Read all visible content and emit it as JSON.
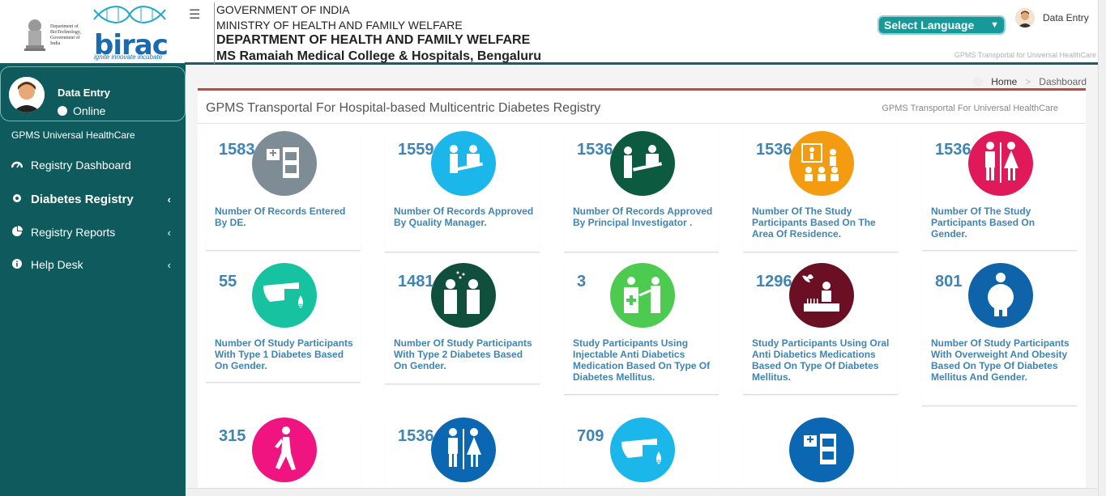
{
  "header": {
    "gov_line1": "GOVERNMENT OF INDIA",
    "gov_line2": "MINISTRY OF HEALTH AND FAMILY WELFARE",
    "gov_line3": "DEPARTMENT OF HEALTH AND FAMILY WELFARE",
    "gov_line4": "MS Ramaiah Medical College & Hospitals, Bengaluru",
    "language_select": "Select Language",
    "user_name": "Data Entry",
    "subtitle": "GPMS Transportal for Universal HealthCare",
    "logo_text": "birac",
    "logo_tagline": "ignite innovate incubate",
    "emblem_text": "Department of BioTechnology, Government of India"
  },
  "sidebar": {
    "user_name": "Data Entry",
    "status": "Online",
    "org": "GPMS Universal HealthCare",
    "items": [
      {
        "label": "Registry Dashboard",
        "icon": "dashboard-icon"
      },
      {
        "label": "Diabetes Registry",
        "icon": "gear-icon"
      },
      {
        "label": "Registry Reports",
        "icon": "pie-chart-icon"
      },
      {
        "label": "Help Desk",
        "icon": "info-icon"
      }
    ]
  },
  "breadcrumb": {
    "home": "Home",
    "current": "Dashboard"
  },
  "panel": {
    "title": "GPMS Transportal For Hospital-based Multicentric Diabetes Registry",
    "subtitle": "GPMS Transportal For Universal HealthCare"
  },
  "cards": [
    {
      "count": "1583",
      "label": "Number Of Records Entered By DE.",
      "color": "#7d8c95",
      "icon": "records-icon"
    },
    {
      "count": "1559",
      "label": "Number Of Records Approved By Quality Manager.",
      "color": "#1bb6ea",
      "icon": "quality-manager-icon"
    },
    {
      "count": "1536",
      "label": "Number Of Records Approved By Principal Investigator .",
      "color": "#0c5a40",
      "icon": "investigator-icon"
    },
    {
      "count": "1536",
      "label": "Number Of The Study Participants Based On The Area Of Residence.",
      "color": "#f39c12",
      "icon": "residence-icon"
    },
    {
      "count": "1536",
      "label": "Number Of The Study Participants Based On Gender.",
      "color": "#e0195a",
      "icon": "gender-icon"
    },
    {
      "count": "55",
      "label": "Number Of Study Participants With Type 1 Diabetes Based On Gender.",
      "color": "#17c2a0",
      "icon": "type1-diabetes-icon"
    },
    {
      "count": "1481",
      "label": "Number Of Study Participants With Type 2 Diabetes Based On Gender.",
      "color": "#0f4f3c",
      "icon": "type2-diabetes-icon"
    },
    {
      "count": "3",
      "label": "Study Participants Using Injectable Anti Diabetics Medication Based On Type Of Diabetes Mellitus.",
      "color": "#4ccb50",
      "icon": "injectable-icon"
    },
    {
      "count": "1296",
      "label": "Study Participants Using Oral Anti Diabetics Medications Based On Type Of Diabetes Mellitus.",
      "color": "#6b0f24",
      "icon": "oral-medication-icon"
    },
    {
      "count": "801",
      "label": "Number Of Study Participants With Overweight And Obesity Based On Type Of Diabetes Mellitus And Gender.",
      "color": "#0f63a8",
      "icon": "obesity-icon"
    },
    {
      "count": "315",
      "label": "",
      "color": "#ef1480",
      "icon": "walking-icon"
    },
    {
      "count": "1536",
      "label": "",
      "color": "#0b67b2",
      "icon": "gender-icon"
    },
    {
      "count": "709",
      "label": "",
      "color": "#1bb6ea",
      "icon": "glucose-test-icon"
    },
    {
      "count": "",
      "label": "",
      "color": "#0b67b2",
      "icon": "records-icon"
    }
  ]
}
